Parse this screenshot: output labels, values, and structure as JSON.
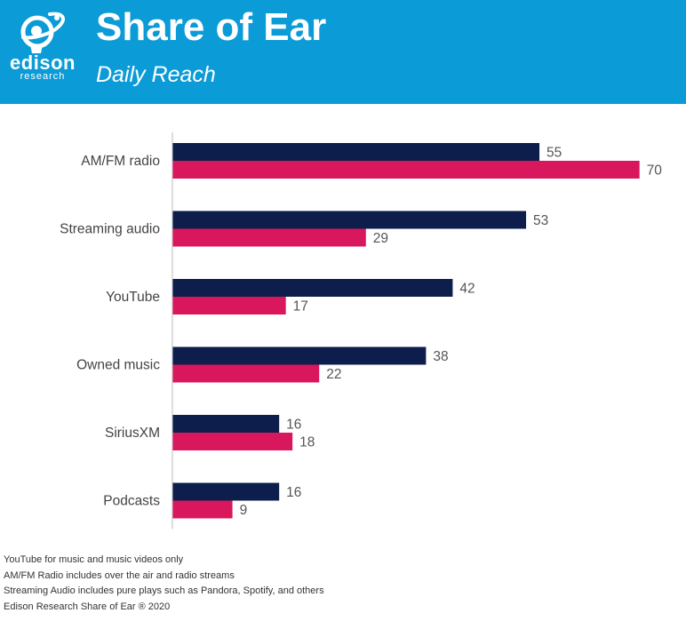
{
  "header": {
    "title": "Share of Ear",
    "subtitle": "Daily Reach",
    "logo_word": "edison",
    "logo_sub": "research",
    "background": "#0b9bd7"
  },
  "chart_data": {
    "type": "bar",
    "orientation": "horizontal",
    "title": "Share of Ear",
    "subtitle": "Daily Reach",
    "categories": [
      "AM/FM radio",
      "Streaming audio",
      "YouTube",
      "Owned music",
      "SiriusXM",
      "Podcasts"
    ],
    "series": [
      {
        "name": "Series 1",
        "color": "#0d1e4c",
        "values": [
          55,
          53,
          42,
          38,
          16,
          16
        ]
      },
      {
        "name": "Series 2",
        "color": "#d9175c",
        "values": [
          70,
          29,
          17,
          22,
          18,
          9
        ]
      }
    ],
    "xlim": [
      0,
      75
    ],
    "xlabel": "",
    "ylabel": "",
    "grid": false,
    "legend": "none"
  },
  "footnotes": [
    "YouTube for music and music videos only",
    "AM/FM Radio includes over the air and radio streams",
    "Streaming Audio includes pure plays such as Pandora, Spotify, and others",
    "Edison Research Share of Ear ® 2020"
  ]
}
